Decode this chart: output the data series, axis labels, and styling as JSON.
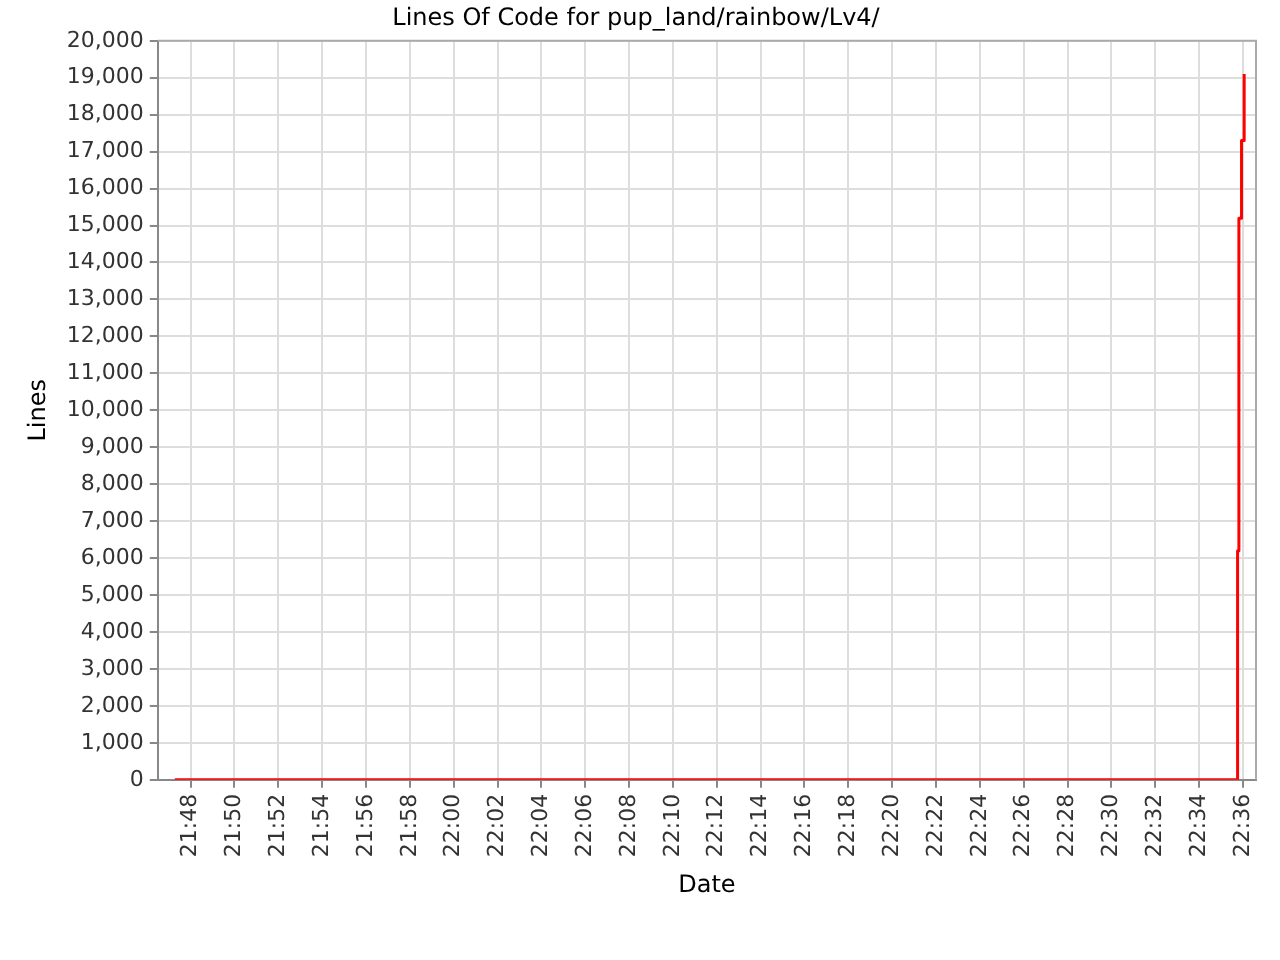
{
  "chart_data": {
    "type": "step",
    "title": "Lines Of Code for pup_land/rainbow/Lv4/",
    "xlabel": "Date",
    "ylabel": "Lines",
    "series": [
      {
        "color": "#ff0000",
        "x": [
          21.788,
          22.596,
          22.597,
          22.599,
          22.601
        ],
        "values": [
          0,
          6200,
          15200,
          17300,
          19100
        ]
      }
    ],
    "xlim": [
      21.775,
      22.61
    ],
    "xticks": [
      {
        "value": 21.8,
        "label": "21:48"
      },
      {
        "value": 21.8333,
        "label": "21:50"
      },
      {
        "value": 21.8667,
        "label": "21:52"
      },
      {
        "value": 21.9,
        "label": "21:54"
      },
      {
        "value": 21.9333,
        "label": "21:56"
      },
      {
        "value": 21.9667,
        "label": "21:58"
      },
      {
        "value": 22,
        "label": "22:00"
      },
      {
        "value": 22.0333,
        "label": "22:02"
      },
      {
        "value": 22.0667,
        "label": "22:04"
      },
      {
        "value": 22.1,
        "label": "22:06"
      },
      {
        "value": 22.1333,
        "label": "22:08"
      },
      {
        "value": 22.1667,
        "label": "22:10"
      },
      {
        "value": 22.2,
        "label": "22:12"
      },
      {
        "value": 22.2333,
        "label": "22:14"
      },
      {
        "value": 22.2667,
        "label": "22:16"
      },
      {
        "value": 22.3,
        "label": "22:18"
      },
      {
        "value": 22.3333,
        "label": "22:20"
      },
      {
        "value": 22.3667,
        "label": "22:22"
      },
      {
        "value": 22.4,
        "label": "22:24"
      },
      {
        "value": 22.4333,
        "label": "22:26"
      },
      {
        "value": 22.4667,
        "label": "22:28"
      },
      {
        "value": 22.5,
        "label": "22:30"
      },
      {
        "value": 22.5333,
        "label": "22:32"
      },
      {
        "value": 22.5667,
        "label": "22:34"
      },
      {
        "value": 22.6,
        "label": "22:36"
      }
    ],
    "ylim": [
      0,
      20000
    ],
    "yticks": [
      0,
      {
        "value": 1000,
        "label": "1,000"
      },
      {
        "value": 2000,
        "label": "2,000"
      },
      {
        "value": 3000,
        "label": "3,000"
      },
      {
        "value": 4000,
        "label": "4,000"
      },
      {
        "value": 5000,
        "label": "5,000"
      },
      {
        "value": 6000,
        "label": "6,000"
      },
      {
        "value": 7000,
        "label": "7,000"
      },
      {
        "value": 8000,
        "label": "8,000"
      },
      {
        "value": 9000,
        "label": "9,000"
      },
      {
        "value": 10000,
        "label": "10,000"
      },
      {
        "value": 11000,
        "label": "11,000"
      },
      {
        "value": 12000,
        "label": "12,000"
      },
      {
        "value": 13000,
        "label": "13,000"
      },
      {
        "value": 14000,
        "label": "14,000"
      },
      {
        "value": 15000,
        "label": "15,000"
      },
      {
        "value": 16000,
        "label": "16,000"
      },
      {
        "value": 17000,
        "label": "17,000"
      },
      {
        "value": 18000,
        "label": "18,000"
      },
      {
        "value": 19000,
        "label": "19,000"
      },
      {
        "value": 20000,
        "label": "20,000"
      }
    ],
    "grid": true,
    "legend": false,
    "marker": "none",
    "line_style": "solid"
  }
}
